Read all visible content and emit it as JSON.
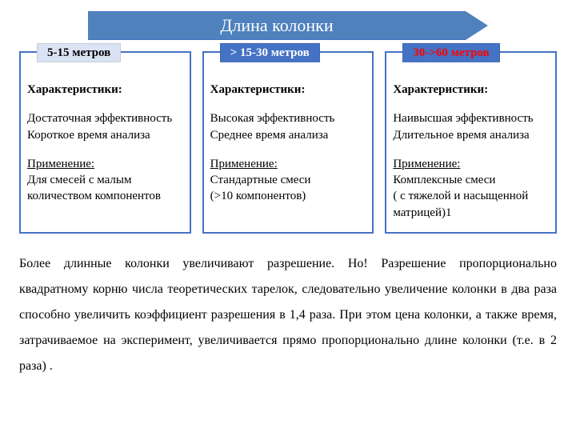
{
  "colors": {
    "arrow_fill": "#4f81bd",
    "arrow_border": "#4472c4",
    "arrow_text": "#ffffff",
    "card_border": "#4472c4",
    "text": "#000000",
    "badge1_bg": "#dae3f3",
    "badge1_text": "#000000",
    "badge2_bg": "#4472c4",
    "badge2_text": "#ffffff",
    "badge3_bg": "#4472c4",
    "badge3_text": "#ff0000"
  },
  "title": "Длина колонки",
  "cards": [
    {
      "badge": "5-15 метров",
      "characteristics_label": "Характеристики:",
      "characteristics": "Достаточная эффективность\nКороткое время анализа",
      "application_label": "Применение:",
      "application": "Для смесей с малым количеством компонентов"
    },
    {
      "badge": "> 15-30 метров",
      "characteristics_label": "Характеристики:",
      "characteristics": "Высокая эффективность\nСреднее время анализа",
      "application_label": "Применение:",
      "application": "Стандартные смеси\n(>10 компонентов)"
    },
    {
      "badge": "30->60 метров",
      "characteristics_label": "Характеристики:",
      "characteristics": "Наивысшая эффективность\nДлительное время анализа",
      "application_label": "Применение:",
      "application": "Комплексные смеси\n( с тяжелой и насыщенной матрицей)1"
    }
  ],
  "footer": "Более длинные колонки увеличивают разрешение. Но!  Разрешение пропорционально квадратному корню числа теоретических тарелок, следовательно увеличение колонки в два раза способно увеличить коэффициент разрешения в 1,4 раза. При этом цена колонки, а также время, затрачиваемое на эксперимент, увеличивается прямо пропорционально длине колонки (т.е. в 2 раза) ."
}
